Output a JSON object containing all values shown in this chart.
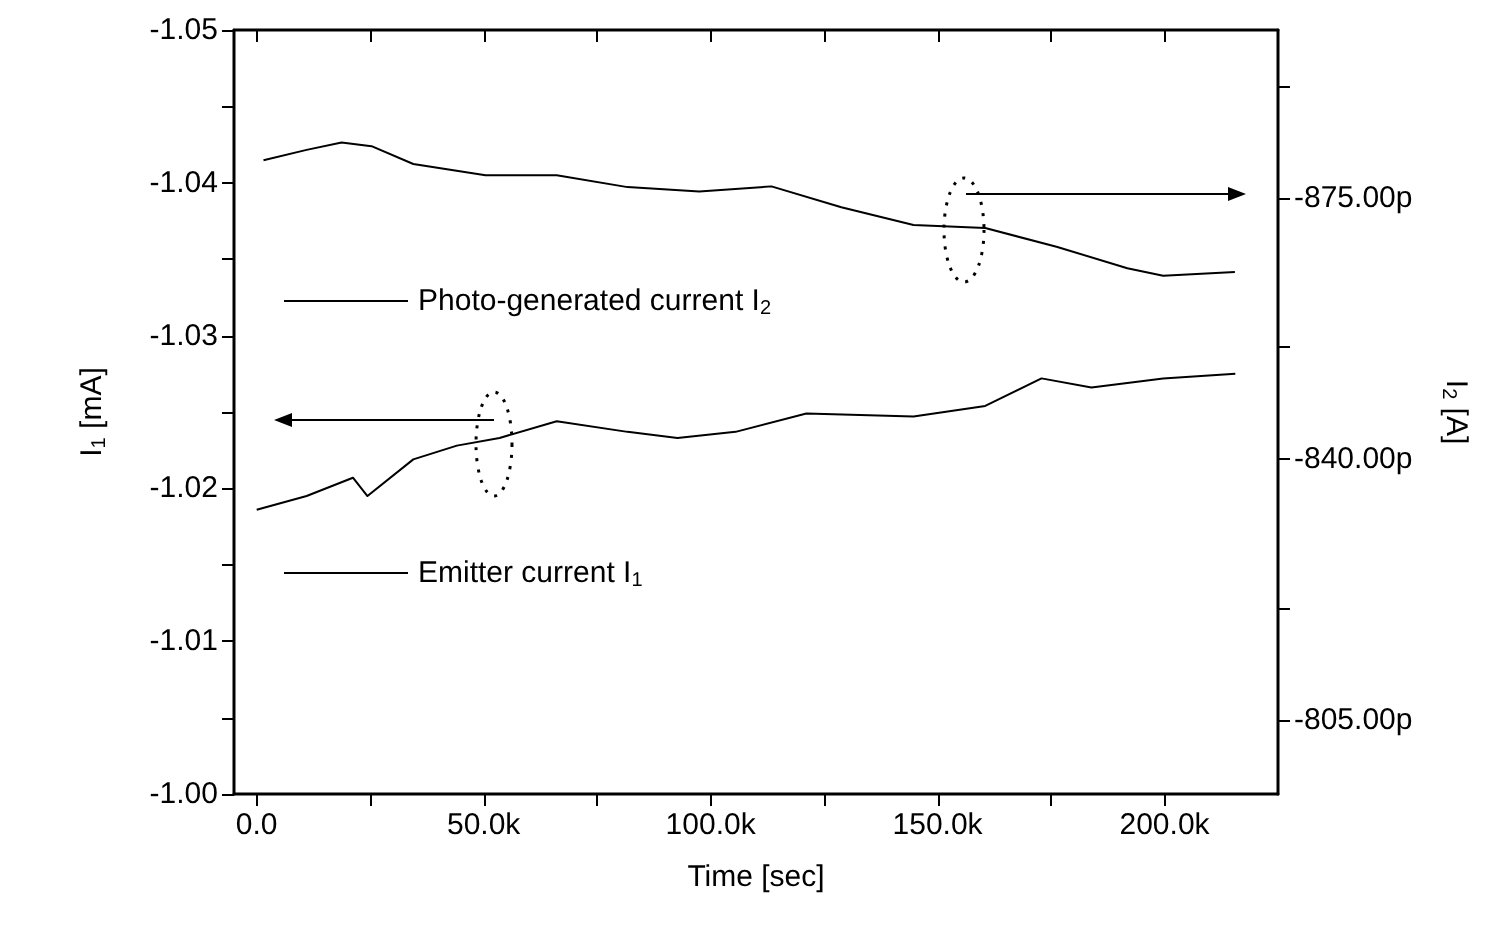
{
  "chart_data": {
    "type": "line",
    "xlabel": "Time [sec]",
    "ylabel": "I$_{1}$ [mA]",
    "y2label": "I$_{2}$ [A]",
    "xlim": [
      -5000,
      225000
    ],
    "xticks": [
      {
        "value": 0,
        "label": "0.0"
      },
      {
        "value": 25000,
        "label": null
      },
      {
        "value": 50000,
        "label": "50.0k"
      },
      {
        "value": 75000,
        "label": null
      },
      {
        "value": 100000,
        "label": "100.0k"
      },
      {
        "value": 125000,
        "label": null
      },
      {
        "value": 150000,
        "label": "150.0k"
      },
      {
        "value": 175000,
        "label": null
      },
      {
        "value": 200000,
        "label": "200.0k"
      }
    ],
    "ylim": [
      -1.0,
      -1.05
    ],
    "yticks": [
      {
        "value": -1.0,
        "label": "-1.00"
      },
      {
        "value": -1.005,
        "label": null
      },
      {
        "value": -1.01,
        "label": "-1.01"
      },
      {
        "value": -1.015,
        "label": null
      },
      {
        "value": -1.02,
        "label": "-1.02"
      },
      {
        "value": -1.025,
        "label": null
      },
      {
        "value": -1.03,
        "label": "-1.03"
      },
      {
        "value": -1.035,
        "label": null
      },
      {
        "value": -1.04,
        "label": "-1.04"
      },
      {
        "value": -1.045,
        "label": null
      },
      {
        "value": -1.05,
        "label": "-1.05"
      }
    ],
    "y2lim": [
      -795,
      -897.6
    ],
    "y2ticks": [
      {
        "value": -820,
        "label": null
      },
      {
        "value": -805,
        "label": "-805.00p"
      },
      {
        "value": -840,
        "label": "-840.00p"
      },
      {
        "value": -855,
        "label": null
      },
      {
        "value": -875,
        "label": "-875.00p"
      },
      {
        "value": -890,
        "label": null
      }
    ],
    "grid": false,
    "legend": "left",
    "marker": "none",
    "line_style": "solid",
    "series": [
      {
        "name": "Photo-generated current I$_{2}$",
        "color": "#000000",
        "axis": "y2",
        "x": [
          1500,
          11000,
          18700,
          25300,
          34500,
          50400,
          66100,
          81700,
          97500,
          113400,
          128800,
          144700,
          160500,
          176200,
          191800,
          199700,
          215500
        ],
        "values": [
          -880.1,
          -881.5,
          -882.5,
          -882.0,
          -879.6,
          -878.1,
          -878.1,
          -876.5,
          -875.9,
          -876.6,
          -873.8,
          -871.4,
          -871.0,
          -868.5,
          -865.6,
          -864.6,
          -865.1
        ]
      },
      {
        "name": "Emitter current I$_{1}$",
        "color": "#000000",
        "x": [
          0,
          11000,
          21200,
          24400,
          34500,
          44100,
          53500,
          66100,
          81700,
          92700,
          105500,
          121100,
          144700,
          160500,
          172900,
          183900,
          199700,
          215600
        ],
        "values": [
          -1.0186,
          -1.0195,
          -1.0207,
          -1.0195,
          -1.0219,
          -1.0228,
          -1.0233,
          -1.0244,
          -1.0237,
          -1.0233,
          -1.0237,
          -1.0249,
          -1.0247,
          -1.0254,
          -1.0272,
          -1.0266,
          -1.0272,
          -1.0275
        ]
      }
    ]
  }
}
